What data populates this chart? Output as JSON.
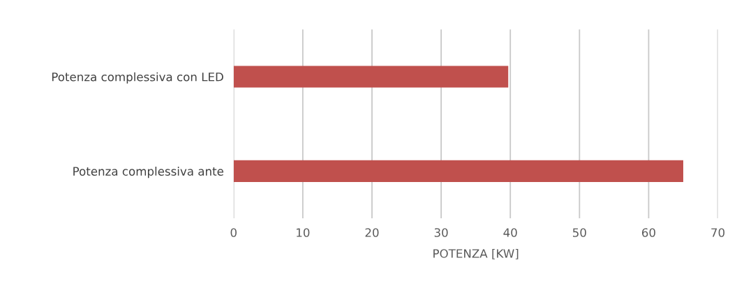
{
  "chart_data": {
    "type": "bar",
    "orientation": "horizontal",
    "categories": [
      "Potenza complessiva con LED",
      "Potenza complessiva ante"
    ],
    "values": [
      39.7,
      65
    ],
    "color": "#c0504d",
    "xlabel": "POTENZA [KW]",
    "xlim": [
      0,
      70
    ],
    "xticks": [
      0,
      10,
      20,
      30,
      40,
      50,
      60,
      70
    ],
    "grid": "x"
  }
}
